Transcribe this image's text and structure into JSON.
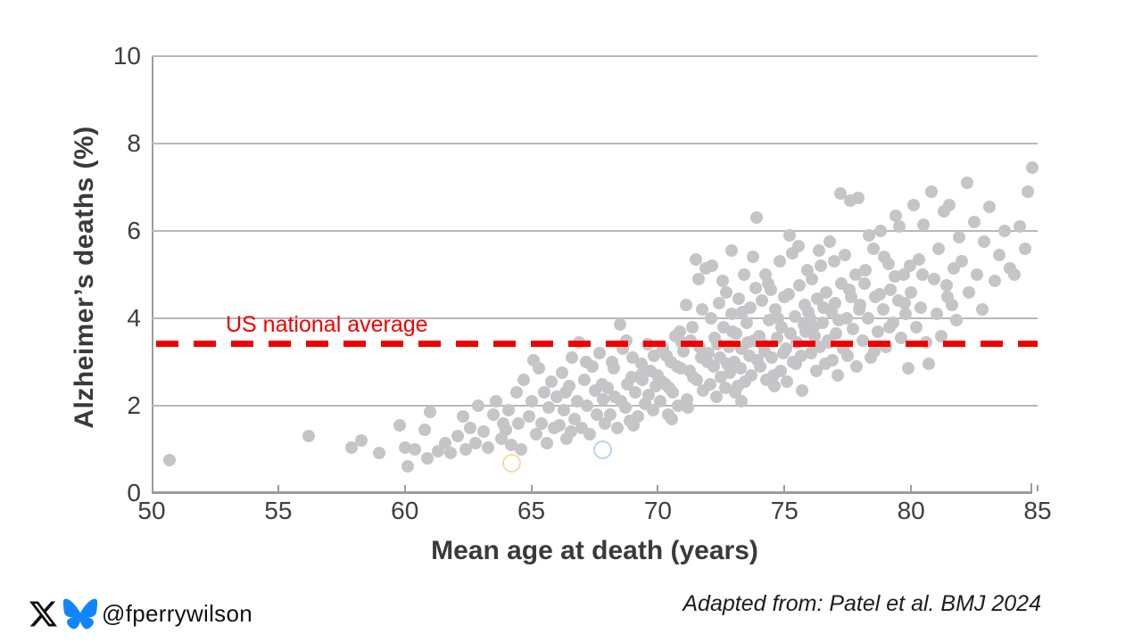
{
  "chart_data": {
    "type": "scatter",
    "title": "",
    "xlabel": "Mean age at death (years)",
    "ylabel": "Alzheimer’s deaths (%)",
    "xlim": [
      50,
      85
    ],
    "ylim": [
      0,
      10
    ],
    "x_ticks": [
      50,
      55,
      60,
      65,
      70,
      75,
      80,
      85
    ],
    "y_ticks": [
      0,
      2,
      4,
      6,
      8,
      10
    ],
    "grid": "horizontal",
    "legend": "none",
    "point_color": "#c5c5c7",
    "reference_line": {
      "label": "US national average",
      "value": 3.43,
      "color": "#f10000",
      "style": "dashed"
    },
    "highlight_rings": [
      {
        "x": 64.2,
        "y": 0.7,
        "color": "#f3a83b"
      },
      {
        "x": 67.8,
        "y": 1.0,
        "color": "#5aa2e0"
      }
    ],
    "points": [
      [
        50.7,
        0.75
      ],
      [
        56.2,
        1.3
      ],
      [
        57.9,
        1.05
      ],
      [
        58.3,
        1.2
      ],
      [
        59.0,
        0.92
      ],
      [
        59.8,
        1.55
      ],
      [
        60.0,
        1.05
      ],
      [
        60.1,
        0.62
      ],
      [
        60.4,
        1.0
      ],
      [
        60.8,
        1.45
      ],
      [
        60.9,
        0.8
      ],
      [
        61.0,
        1.85
      ],
      [
        61.3,
        0.95
      ],
      [
        61.6,
        1.15
      ],
      [
        61.8,
        0.92
      ],
      [
        62.1,
        1.3
      ],
      [
        62.3,
        1.75
      ],
      [
        62.4,
        1.0
      ],
      [
        62.6,
        1.5
      ],
      [
        62.8,
        1.15
      ],
      [
        62.9,
        2.0
      ],
      [
        63.1,
        1.4
      ],
      [
        63.3,
        1.05
      ],
      [
        63.5,
        1.8
      ],
      [
        63.6,
        2.1
      ],
      [
        63.8,
        1.25
      ],
      [
        63.9,
        1.6
      ],
      [
        64.0,
        1.45
      ],
      [
        64.1,
        1.9
      ],
      [
        64.2,
        1.1
      ],
      [
        64.4,
        2.3
      ],
      [
        64.5,
        1.6
      ],
      [
        64.6,
        1.0
      ],
      [
        64.7,
        2.6
      ],
      [
        64.9,
        1.75
      ],
      [
        65.0,
        2.1
      ],
      [
        65.1,
        3.05
      ],
      [
        65.2,
        1.35
      ],
      [
        65.3,
        2.85
      ],
      [
        65.4,
        1.6
      ],
      [
        65.5,
        2.3
      ],
      [
        65.6,
        1.15
      ],
      [
        65.7,
        1.95
      ],
      [
        65.8,
        2.55
      ],
      [
        65.9,
        1.5
      ],
      [
        66.0,
        2.2
      ],
      [
        66.1,
        1.55
      ],
      [
        66.2,
        2.75
      ],
      [
        66.3,
        1.9
      ],
      [
        66.35,
        2.3
      ],
      [
        66.4,
        1.25
      ],
      [
        66.5,
        2.45
      ],
      [
        66.55,
        1.4
      ],
      [
        66.6,
        3.1
      ],
      [
        66.7,
        1.7
      ],
      [
        66.8,
        2.1
      ],
      [
        66.9,
        3.45
      ],
      [
        67.0,
        1.5
      ],
      [
        67.1,
        2.6
      ],
      [
        67.15,
        3.0
      ],
      [
        67.2,
        2.0
      ],
      [
        67.3,
        1.35
      ],
      [
        67.4,
        2.9
      ],
      [
        67.5,
        2.35
      ],
      [
        67.6,
        1.8
      ],
      [
        67.7,
        3.2
      ],
      [
        67.8,
        2.5
      ],
      [
        67.85,
        2.15
      ],
      [
        67.9,
        1.6
      ],
      [
        68.0,
        2.4
      ],
      [
        68.1,
        1.8
      ],
      [
        68.2,
        3.0
      ],
      [
        68.25,
        2.85
      ],
      [
        68.3,
        2.2
      ],
      [
        68.4,
        1.5
      ],
      [
        68.5,
        3.85
      ],
      [
        68.55,
        2.1
      ],
      [
        68.6,
        3.3
      ],
      [
        68.7,
        1.95
      ],
      [
        68.75,
        3.5
      ],
      [
        68.8,
        2.5
      ],
      [
        68.9,
        1.65
      ],
      [
        68.95,
        2.65
      ],
      [
        69.0,
        3.1
      ],
      [
        69.05,
        1.55
      ],
      [
        69.1,
        2.3
      ],
      [
        69.2,
        1.75
      ],
      [
        69.3,
        2.7
      ],
      [
        69.35,
        2.95
      ],
      [
        69.4,
        2.6
      ],
      [
        69.5,
        2.05
      ],
      [
        69.6,
        3.4
      ],
      [
        69.65,
        2.25
      ],
      [
        69.7,
        2.8
      ],
      [
        69.8,
        1.9
      ],
      [
        69.85,
        3.15
      ],
      [
        69.9,
        2.45
      ],
      [
        70.0,
        2.7
      ],
      [
        70.1,
        2.1
      ],
      [
        70.15,
        2.55
      ],
      [
        70.2,
        3.3
      ],
      [
        70.3,
        2.5
      ],
      [
        70.35,
        3.15
      ],
      [
        70.4,
        1.8
      ],
      [
        70.45,
        2.4
      ],
      [
        70.5,
        3.0
      ],
      [
        70.55,
        1.7
      ],
      [
        70.6,
        2.3
      ],
      [
        70.7,
        3.6
      ],
      [
        70.75,
        2.9
      ],
      [
        70.8,
        2.0
      ],
      [
        70.85,
        3.7
      ],
      [
        70.9,
        2.85
      ],
      [
        70.95,
        3.45
      ],
      [
        71.0,
        3.25
      ],
      [
        71.1,
        4.3
      ],
      [
        71.15,
        2.15
      ],
      [
        71.2,
        1.95
      ],
      [
        71.25,
        2.8
      ],
      [
        71.3,
        3.5
      ],
      [
        71.35,
        3.8
      ],
      [
        71.4,
        2.65
      ],
      [
        71.5,
        5.35
      ],
      [
        71.55,
        2.6
      ],
      [
        71.6,
        4.9
      ],
      [
        71.65,
        3.35
      ],
      [
        71.7,
        3.1
      ],
      [
        71.75,
        4.2
      ],
      [
        71.8,
        2.35
      ],
      [
        71.9,
        5.15
      ],
      [
        71.95,
        3.0
      ],
      [
        72.0,
        3.2
      ],
      [
        72.05,
        2.5
      ],
      [
        72.1,
        4.0
      ],
      [
        72.15,
        5.2
      ],
      [
        72.2,
        2.9
      ],
      [
        72.25,
        3.55
      ],
      [
        72.3,
        2.2
      ],
      [
        72.35,
        3.4
      ],
      [
        72.4,
        4.35
      ],
      [
        72.45,
        3.1
      ],
      [
        72.5,
        2.65
      ],
      [
        72.55,
        4.85
      ],
      [
        72.6,
        3.8
      ],
      [
        72.65,
        2.4
      ],
      [
        72.7,
        4.6
      ],
      [
        72.75,
        2.95
      ],
      [
        72.8,
        3.35
      ],
      [
        72.85,
        2.75
      ],
      [
        72.9,
        5.55
      ],
      [
        72.95,
        3.7
      ],
      [
        73.0,
        3.0
      ],
      [
        73.05,
        2.3
      ],
      [
        73.1,
        3.65
      ],
      [
        73.15,
        2.45
      ],
      [
        73.2,
        4.45
      ],
      [
        73.25,
        2.85
      ],
      [
        73.3,
        2.1
      ],
      [
        73.35,
        4.15
      ],
      [
        73.4,
        5.0
      ],
      [
        73.45,
        2.55
      ],
      [
        73.5,
        3.9
      ],
      [
        73.55,
        3.45
      ],
      [
        73.6,
        3.15
      ],
      [
        73.65,
        4.25
      ],
      [
        73.7,
        2.7
      ],
      [
        73.75,
        5.4
      ],
      [
        73.8,
        3.5
      ],
      [
        73.85,
        4.7
      ],
      [
        73.9,
        6.3
      ],
      [
        73.95,
        3.05
      ],
      [
        73.3,
        3.3
      ],
      [
        72.9,
        4.1
      ],
      [
        74.0,
        3.6
      ],
      [
        74.05,
        2.9
      ],
      [
        74.1,
        4.4
      ],
      [
        74.15,
        3.4
      ],
      [
        74.2,
        3.25
      ],
      [
        74.25,
        5.0
      ],
      [
        74.3,
        2.6
      ],
      [
        74.35,
        4.8
      ],
      [
        74.4,
        3.95
      ],
      [
        74.45,
        4.65
      ],
      [
        74.5,
        3.1
      ],
      [
        74.55,
        2.7
      ],
      [
        74.6,
        2.45
      ],
      [
        74.65,
        4.2
      ],
      [
        74.7,
        3.55
      ],
      [
        74.75,
        4.0
      ],
      [
        74.8,
        5.3
      ],
      [
        74.85,
        2.8
      ],
      [
        74.9,
        3.8
      ],
      [
        74.95,
        3.2
      ],
      [
        75.0,
        4.5
      ],
      [
        75.05,
        3.3
      ],
      [
        75.1,
        2.55
      ],
      [
        75.15,
        4.55
      ],
      [
        75.2,
        5.9
      ],
      [
        75.25,
        3.65
      ],
      [
        75.3,
        5.5
      ],
      [
        75.35,
        3.0
      ],
      [
        75.4,
        4.05
      ],
      [
        75.45,
        2.95
      ],
      [
        75.5,
        3.45
      ],
      [
        75.55,
        5.65
      ],
      [
        75.6,
        4.75
      ],
      [
        75.65,
        3.15
      ],
      [
        75.7,
        2.35
      ],
      [
        75.75,
        3.85
      ],
      [
        75.8,
        4.3
      ],
      [
        75.85,
        3.7
      ],
      [
        75.9,
        5.1
      ],
      [
        75.95,
        4.15
      ],
      [
        76.0,
        4.0
      ],
      [
        76.05,
        3.2
      ],
      [
        76.1,
        4.9
      ],
      [
        76.15,
        3.8
      ],
      [
        76.2,
        3.6
      ],
      [
        76.25,
        2.8
      ],
      [
        76.3,
        4.45
      ],
      [
        76.35,
        5.55
      ],
      [
        76.4,
        3.35
      ],
      [
        76.45,
        5.2
      ],
      [
        76.5,
        3.9
      ],
      [
        76.55,
        4.25
      ],
      [
        76.6,
        2.95
      ],
      [
        76.65,
        4.6
      ],
      [
        76.7,
        3.5
      ],
      [
        76.75,
        3.45
      ],
      [
        76.8,
        5.75
      ],
      [
        76.85,
        4.15
      ],
      [
        76.9,
        3.05
      ],
      [
        76.95,
        5.3
      ],
      [
        77.0,
        4.35
      ],
      [
        77.05,
        3.65
      ],
      [
        77.1,
        2.7
      ],
      [
        77.15,
        3.95
      ],
      [
        77.2,
        6.85
      ],
      [
        77.25,
        4.8
      ],
      [
        77.3,
        3.3
      ],
      [
        77.4,
        5.45
      ],
      [
        77.45,
        4.0
      ],
      [
        77.5,
        3.15
      ],
      [
        77.55,
        4.65
      ],
      [
        77.6,
        6.7
      ],
      [
        77.65,
        4.5
      ],
      [
        77.7,
        3.75
      ],
      [
        77.8,
        5.0
      ],
      [
        77.85,
        2.9
      ],
      [
        77.9,
        6.75
      ],
      [
        77.95,
        4.2
      ],
      [
        78.0,
        4.3
      ],
      [
        78.1,
        3.5
      ],
      [
        78.15,
        4.8
      ],
      [
        78.2,
        5.1
      ],
      [
        78.3,
        4.0
      ],
      [
        78.35,
        5.9
      ],
      [
        78.4,
        3.1
      ],
      [
        78.5,
        5.6
      ],
      [
        78.55,
        3.25
      ],
      [
        78.6,
        4.5
      ],
      [
        78.7,
        3.7
      ],
      [
        78.75,
        4.55
      ],
      [
        78.8,
        6.0
      ],
      [
        78.9,
        4.2
      ],
      [
        78.95,
        5.4
      ],
      [
        79.0,
        3.35
      ],
      [
        79.1,
        5.25
      ],
      [
        79.15,
        3.8
      ],
      [
        79.2,
        4.65
      ],
      [
        79.3,
        3.9
      ],
      [
        79.35,
        4.95
      ],
      [
        79.4,
        6.35
      ],
      [
        79.5,
        4.4
      ],
      [
        79.55,
        6.1
      ],
      [
        79.6,
        3.55
      ],
      [
        79.7,
        5.0
      ],
      [
        79.75,
        4.35
      ],
      [
        79.8,
        4.1
      ],
      [
        79.9,
        2.85
      ],
      [
        79.95,
        5.2
      ],
      [
        80.0,
        4.6
      ],
      [
        80.1,
        6.6
      ],
      [
        80.2,
        3.8
      ],
      [
        80.3,
        5.35
      ],
      [
        80.4,
        4.25
      ],
      [
        80.45,
        5.0
      ],
      [
        80.5,
        6.15
      ],
      [
        80.6,
        3.45
      ],
      [
        80.7,
        2.95
      ],
      [
        80.8,
        6.9
      ],
      [
        80.9,
        4.9
      ],
      [
        81.0,
        4.1
      ],
      [
        81.1,
        5.6
      ],
      [
        81.2,
        3.6
      ],
      [
        81.3,
        6.45
      ],
      [
        81.4,
        4.75
      ],
      [
        81.45,
        4.5
      ],
      [
        81.5,
        6.6
      ],
      [
        81.6,
        4.3
      ],
      [
        81.7,
        5.15
      ],
      [
        81.8,
        3.95
      ],
      [
        81.9,
        5.85
      ],
      [
        82.0,
        5.3
      ],
      [
        82.2,
        7.1
      ],
      [
        82.3,
        4.6
      ],
      [
        82.5,
        6.2
      ],
      [
        82.6,
        5.0
      ],
      [
        82.8,
        4.2
      ],
      [
        82.9,
        5.75
      ],
      [
        83.1,
        6.55
      ],
      [
        83.3,
        4.85
      ],
      [
        83.5,
        5.45
      ],
      [
        83.7,
        6.0
      ],
      [
        83.9,
        5.15
      ],
      [
        84.1,
        5.0
      ],
      [
        84.3,
        6.1
      ],
      [
        84.5,
        5.6
      ],
      [
        84.6,
        6.9
      ],
      [
        84.8,
        7.45
      ]
    ]
  },
  "footer": {
    "handle": "@fperrywilson",
    "attribution": "Adapted from: Patel et al. BMJ 2024",
    "bluesky_color": "#1185fe",
    "x_logo_color": "#111111"
  }
}
